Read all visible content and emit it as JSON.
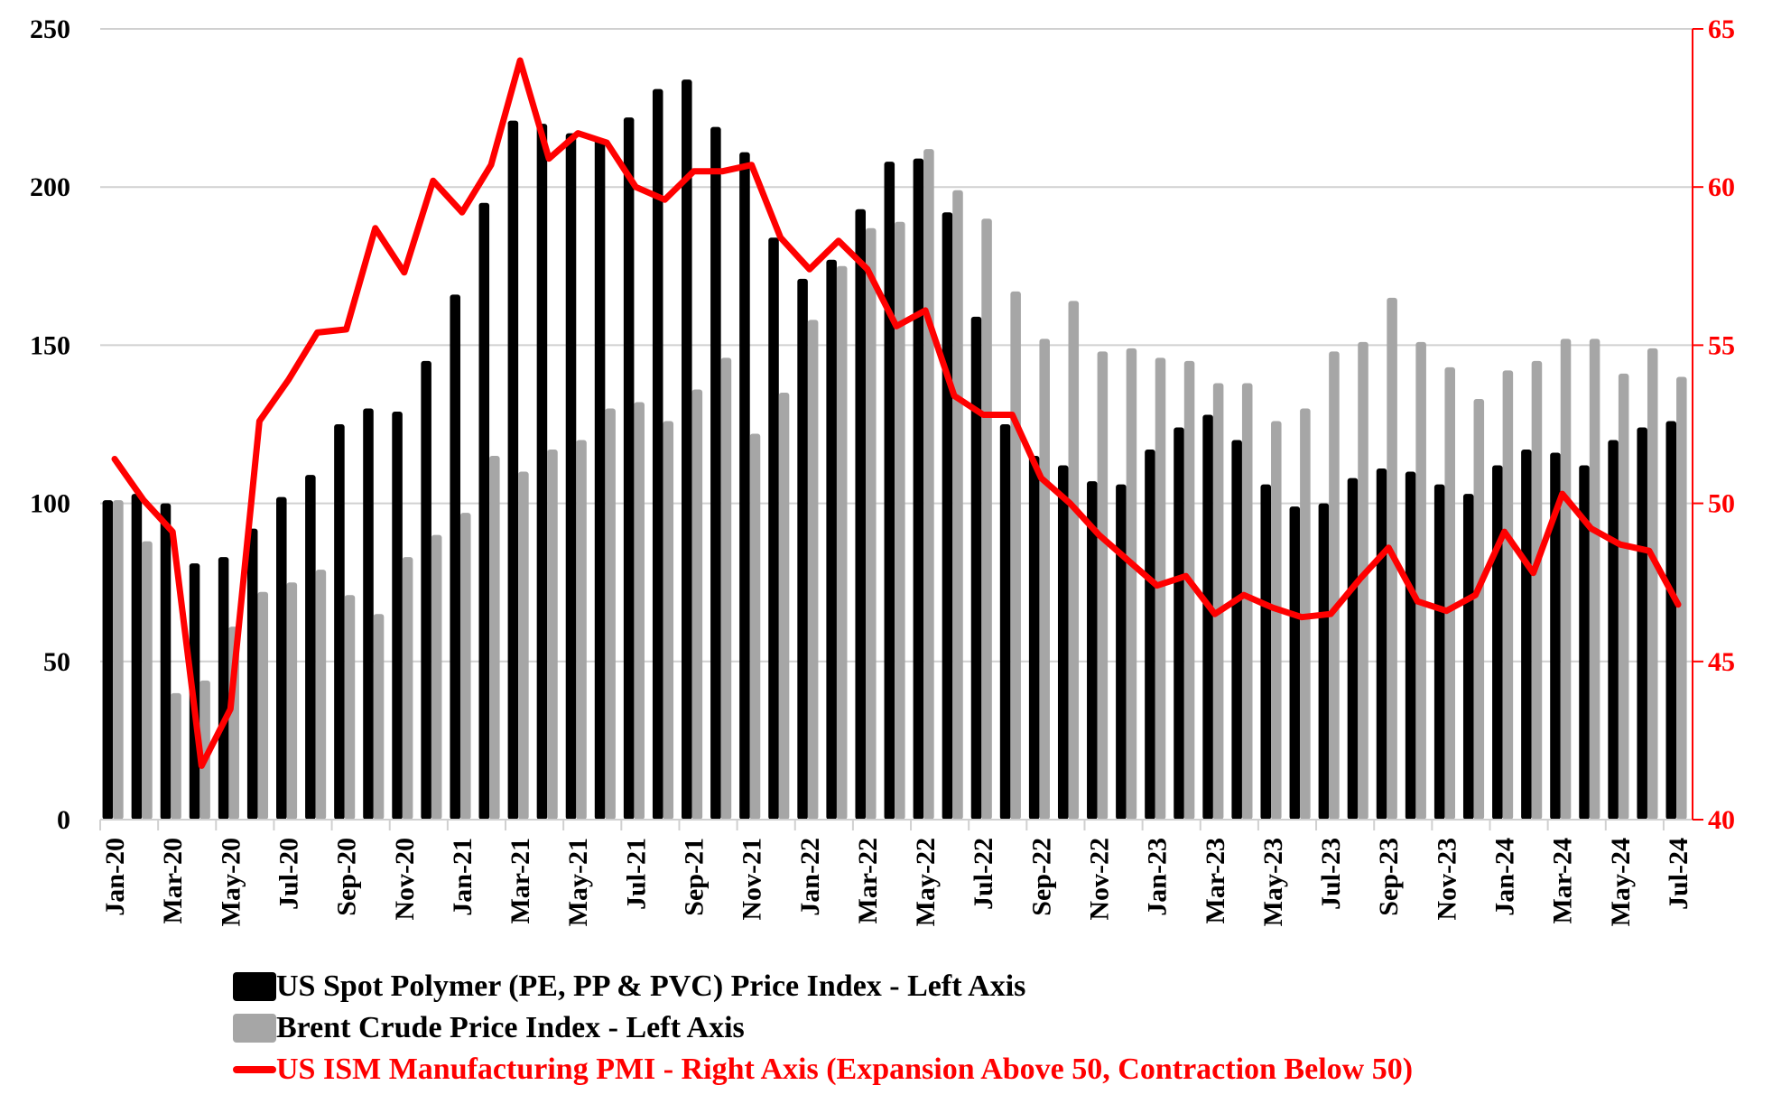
{
  "chart_data": {
    "type": "bar",
    "title": "",
    "xlabel": "",
    "ylabel": "",
    "y2label": "",
    "ylim": [
      0,
      250
    ],
    "y2lim": [
      40,
      65
    ],
    "yticks": [
      0,
      50,
      100,
      150,
      200,
      250
    ],
    "y2ticks": [
      40,
      45,
      50,
      55,
      60,
      65
    ],
    "grid": true,
    "legend_position": "bottom",
    "categories": [
      "Jan-20",
      "Feb-20",
      "Mar-20",
      "Apr-20",
      "May-20",
      "Jun-20",
      "Jul-20",
      "Aug-20",
      "Sep-20",
      "Oct-20",
      "Nov-20",
      "Dec-20",
      "Jan-21",
      "Feb-21",
      "Mar-21",
      "Apr-21",
      "May-21",
      "Jun-21",
      "Jul-21",
      "Aug-21",
      "Sep-21",
      "Oct-21",
      "Nov-21",
      "Dec-21",
      "Jan-22",
      "Feb-22",
      "Mar-22",
      "Apr-22",
      "May-22",
      "Jun-22",
      "Jul-22",
      "Aug-22",
      "Sep-22",
      "Oct-22",
      "Nov-22",
      "Dec-22",
      "Jan-23",
      "Feb-23",
      "Mar-23",
      "Apr-23",
      "May-23",
      "Jun-23",
      "Jul-23",
      "Aug-23",
      "Sep-23",
      "Oct-23",
      "Nov-23",
      "Dec-23",
      "Jan-24",
      "Feb-24",
      "Mar-24",
      "Apr-24",
      "May-24",
      "Jun-24",
      "Jul-24"
    ],
    "x_tick_labels": [
      "Jan-20",
      "Mar-20",
      "May-20",
      "Jul-20",
      "Sep-20",
      "Nov-20",
      "Jan-21",
      "Mar-21",
      "May-21",
      "Jul-21",
      "Sep-21",
      "Nov-21",
      "Jan-22",
      "Mar-22",
      "May-22",
      "Jul-22",
      "Sep-22",
      "Nov-22",
      "Jan-23",
      "Mar-23",
      "May-23",
      "Jul-23",
      "Sep-23",
      "Nov-23",
      "Jan-24",
      "Mar-24",
      "May-24",
      "Jul-24"
    ],
    "series": [
      {
        "name": "US Spot Polymer (PE, PP & PVC) Price Index - Left Axis",
        "type": "bar",
        "axis": "left",
        "color": "#000000",
        "values": [
          101,
          103,
          100,
          81,
          83,
          92,
          102,
          109,
          125,
          130,
          129,
          145,
          166,
          195,
          221,
          220,
          217,
          215,
          222,
          231,
          234,
          219,
          211,
          184,
          171,
          177,
          193,
          208,
          209,
          192,
          159,
          125,
          115,
          112,
          107,
          106,
          117,
          124,
          128,
          120,
          106,
          99,
          100,
          108,
          111,
          110,
          106,
          103,
          112,
          117,
          116,
          112,
          120,
          124,
          126
        ]
      },
      {
        "name": "Brent Crude Price Index - Left Axis",
        "type": "bar",
        "axis": "left",
        "color": "#a6a6a6",
        "values": [
          101,
          88,
          40,
          44,
          61,
          72,
          75,
          79,
          71,
          65,
          83,
          90,
          97,
          115,
          110,
          117,
          120,
          130,
          132,
          126,
          136,
          146,
          122,
          135,
          158,
          175,
          187,
          189,
          212,
          199,
          190,
          167,
          152,
          164,
          148,
          149,
          146,
          145,
          138,
          138,
          126,
          130,
          148,
          151,
          165,
          151,
          143,
          133,
          142,
          145,
          152,
          152,
          141,
          149,
          140
        ]
      },
      {
        "name": "US ISM Manufacturing PMI - Right Axis (Expansion Above 50, Contraction Below 50)",
        "type": "line",
        "axis": "right",
        "color": "#ff0000",
        "values": [
          51.4,
          50.1,
          49.1,
          41.7,
          43.5,
          52.6,
          53.9,
          55.4,
          55.5,
          58.7,
          57.3,
          60.2,
          59.2,
          60.7,
          64.0,
          60.9,
          61.7,
          61.4,
          60.0,
          59.6,
          60.5,
          60.5,
          60.7,
          58.4,
          57.4,
          58.3,
          57.4,
          55.6,
          56.1,
          53.4,
          52.8,
          52.8,
          50.8,
          50.0,
          49.0,
          48.2,
          47.4,
          47.7,
          46.5,
          47.1,
          46.7,
          46.4,
          46.5,
          47.6,
          48.6,
          46.9,
          46.6,
          47.1,
          49.1,
          47.8,
          50.3,
          49.2,
          48.7,
          48.5,
          46.8
        ]
      }
    ]
  },
  "legend": {
    "items": [
      {
        "label": "US Spot Polymer (PE, PP & PVC) Price Index - Left Axis",
        "color": "#000000",
        "text_color": "#000000",
        "shape": "box"
      },
      {
        "label": "Brent Crude Price Index - Left Axis",
        "color": "#a6a6a6",
        "text_color": "#000000",
        "shape": "box"
      },
      {
        "label": "US ISM Manufacturing PMI - Right Axis (Expansion Above 50, Contraction Below 50)",
        "color": "#ff0000",
        "text_color": "#ff0000",
        "shape": "line"
      }
    ]
  }
}
